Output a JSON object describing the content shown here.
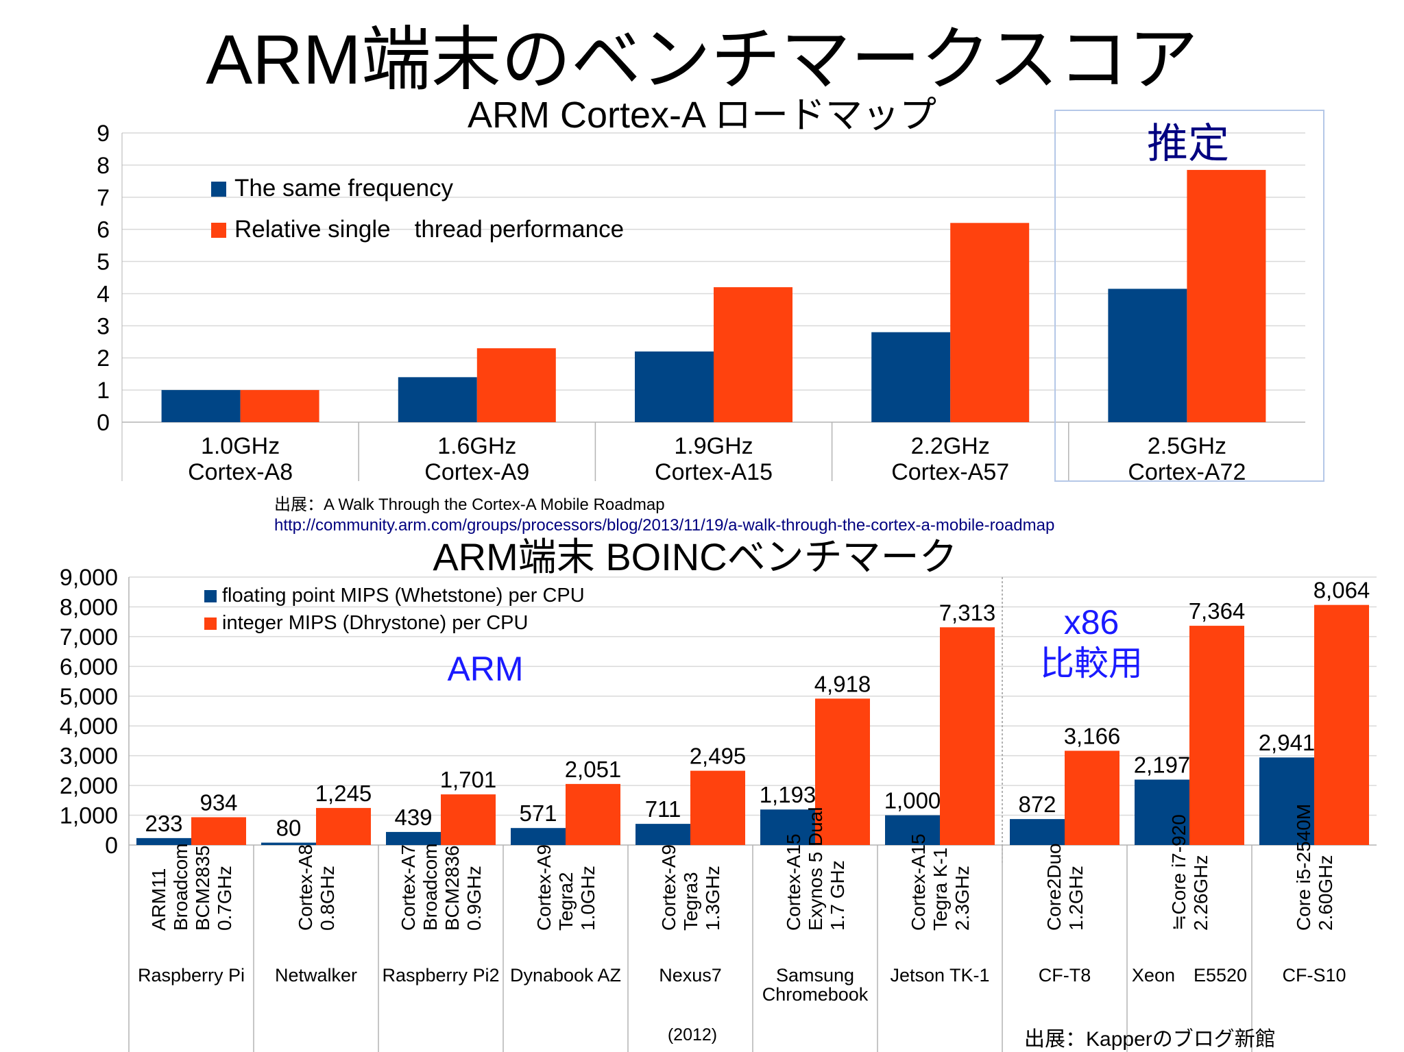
{
  "slide_title": "ARM端末のベンチマークスコア",
  "colors": {
    "blue": "#004586",
    "orange": "#ff420e",
    "grid": "#d9d9d9",
    "axis": "#b3b3b3",
    "accent_text": "#1a1aff",
    "navy_text": "#000080"
  },
  "chart_data": [
    {
      "type": "bar",
      "title": "ARM Cortex-A ロードマップ",
      "categories": [
        [
          "1.0GHz",
          "Cortex-A8"
        ],
        [
          "1.6GHz",
          "Cortex-A9"
        ],
        [
          "1.9GHz",
          "Cortex-A15"
        ],
        [
          "2.2GHz",
          "Cortex-A57"
        ],
        [
          "2.5GHz",
          "Cortex-A72"
        ]
      ],
      "series": [
        {
          "name": "The same frequency",
          "color": "#004586",
          "values": [
            1.0,
            1.4,
            2.2,
            2.8,
            4.15
          ]
        },
        {
          "name": "Relative single　thread performance",
          "color": "#ff420e",
          "values": [
            1.0,
            2.3,
            4.2,
            6.2,
            7.85
          ]
        }
      ],
      "ylim": [
        0,
        9
      ],
      "yticks": [
        "0",
        "1",
        "2",
        "3",
        "4",
        "5",
        "6",
        "7",
        "8",
        "9"
      ],
      "grid": true,
      "legend": "top-left",
      "annotation": "推定",
      "source_label": "出展：A Walk Through the Cortex-A Mobile Roadmap",
      "source_url": "http://community.arm.com/groups/processors/blog/2013/11/19/a-walk-through-the-cortex-a-mobile-roadmap"
    },
    {
      "type": "bar",
      "title": "ARM端末  BOINCベンチマーク",
      "categories": [
        {
          "cpu": [
            "ARM11",
            "Broadcom",
            "BCM2835",
            "0.7GHz"
          ],
          "device": [
            "Raspberry Pi"
          ]
        },
        {
          "cpu": [
            "Cortex-A8",
            "0.8GHz"
          ],
          "device": [
            "Netwalker"
          ]
        },
        {
          "cpu": [
            "Cortex-A7",
            "Broadcom",
            "BCM2836",
            "0.9GHz"
          ],
          "device": [
            "Raspberry Pi2"
          ]
        },
        {
          "cpu": [
            "Cortex-A9",
            "Tegra2",
            "1.0GHz"
          ],
          "device": [
            "Dynabook AZ"
          ]
        },
        {
          "cpu": [
            "Cortex-A9",
            "Tegra3",
            "1.3GHz"
          ],
          "device": [
            "Nexus7"
          ]
        },
        {
          "cpu": [
            "Cortex-A15",
            "Exynos 5 Dual",
            "1.7 GHz"
          ],
          "device": [
            "Samsung",
            "Chromebook"
          ]
        },
        {
          "cpu": [
            "Cortex-A15",
            "Tegra K-1",
            "2.3GHz"
          ],
          "device": [
            "Jetson TK-1"
          ]
        },
        {
          "cpu": [
            "Core2Duo",
            "1.2GHz"
          ],
          "device": [
            "CF-T8"
          ]
        },
        {
          "cpu": [
            "≒Core i7-920",
            "2.26GHz"
          ],
          "device": [
            "Xeon　E5520"
          ]
        },
        {
          "cpu": [
            "Core i5-2540M",
            "2.60GHz"
          ],
          "device": [
            "CF-S10"
          ]
        }
      ],
      "series": [
        {
          "name": "floating point MIPS (Whetstone) per CPU",
          "color": "#004586",
          "values": [
            233,
            80,
            439,
            571,
            711,
            1193,
            1000,
            872,
            2197,
            2941
          ],
          "labels": [
            "233",
            "80",
            "439",
            "571",
            "711",
            "1,193",
            "1,000",
            "872",
            "2,197",
            "2,941"
          ]
        },
        {
          "name": "integer MIPS (Dhrystone) per CPU",
          "color": "#ff420e",
          "values": [
            934,
            1245,
            1701,
            2051,
            2495,
            4918,
            7313,
            3166,
            7364,
            8064
          ],
          "labels": [
            "934",
            "1,245",
            "1,701",
            "2,051",
            "2,495",
            "4,918",
            "7,313",
            "3,166",
            "7,364",
            "8,064"
          ]
        }
      ],
      "ylim": [
        0,
        9000
      ],
      "yticks": [
        "0",
        "1,000",
        "2,000",
        "3,000",
        "4,000",
        "5,000",
        "6,000",
        "7,000",
        "8,000",
        "9,000"
      ],
      "grid": true,
      "legend": "top-left",
      "annotation_arm": "ARM",
      "annotation_x86": [
        "x86",
        "比較用"
      ],
      "note_year": "(2012)",
      "source_label": "出展：Kapperのブログ新館"
    }
  ]
}
